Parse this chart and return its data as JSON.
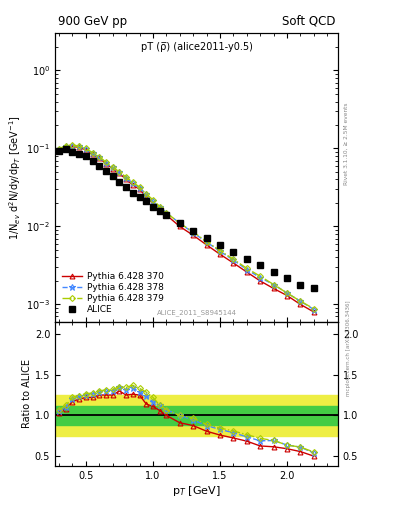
{
  "title_left": "900 GeV pp",
  "title_right": "Soft QCD",
  "right_label": "Rivet 3.1.10, ≥ 2.5M events",
  "plot_title": "pT (ρ̅) (alice2011-y0.5)",
  "watermark": "ALICE_2011_S8945144",
  "source_ref": "mcplots.cern.ch [arXiv:1306.3436]",
  "xlabel": "p$_T$ [GeV]",
  "ylabel_top": "1/N$_{ev}$ d$^2$N/dy/dp$_T$ [GeV$^{-1}$]",
  "ratio_ylabel": "Ratio to ALICE",
  "ylim_log": [
    0.0006,
    3.0
  ],
  "xlim": [
    0.27,
    2.38
  ],
  "ratio_ylim": [
    0.38,
    2.15
  ],
  "ratio_yticks": [
    0.5,
    1.0,
    1.5,
    2.0
  ],
  "alice_pt": [
    0.3,
    0.35,
    0.4,
    0.45,
    0.5,
    0.55,
    0.6,
    0.65,
    0.7,
    0.75,
    0.8,
    0.85,
    0.9,
    0.95,
    1.0,
    1.05,
    1.1,
    1.2,
    1.3,
    1.4,
    1.5,
    1.6,
    1.7,
    1.8,
    1.9,
    2.0,
    2.1,
    2.2
  ],
  "alice_y": [
    0.093,
    0.097,
    0.091,
    0.086,
    0.079,
    0.069,
    0.06,
    0.051,
    0.044,
    0.037,
    0.032,
    0.027,
    0.024,
    0.021,
    0.018,
    0.016,
    0.014,
    0.011,
    0.0088,
    0.0072,
    0.0058,
    0.0047,
    0.0038,
    0.0032,
    0.0026,
    0.0022,
    0.0018,
    0.0016
  ],
  "py370_pt": [
    0.3,
    0.35,
    0.4,
    0.45,
    0.5,
    0.55,
    0.6,
    0.65,
    0.7,
    0.75,
    0.8,
    0.85,
    0.9,
    0.95,
    1.0,
    1.05,
    1.1,
    1.2,
    1.3,
    1.4,
    1.5,
    1.6,
    1.7,
    1.8,
    1.9,
    2.0,
    2.1,
    2.2
  ],
  "py370_y": [
    0.096,
    0.105,
    0.106,
    0.103,
    0.096,
    0.084,
    0.075,
    0.064,
    0.055,
    0.048,
    0.04,
    0.034,
    0.03,
    0.024,
    0.02,
    0.017,
    0.014,
    0.01,
    0.0077,
    0.0058,
    0.0044,
    0.0034,
    0.0026,
    0.002,
    0.0016,
    0.0013,
    0.001,
    0.0008
  ],
  "py378_pt": [
    0.3,
    0.35,
    0.4,
    0.45,
    0.5,
    0.55,
    0.6,
    0.65,
    0.7,
    0.75,
    0.8,
    0.85,
    0.9,
    0.95,
    1.0,
    1.05,
    1.1,
    1.2,
    1.3,
    1.4,
    1.5,
    1.6,
    1.7,
    1.8,
    1.9,
    2.0,
    2.1,
    2.2
  ],
  "py378_y": [
    0.098,
    0.107,
    0.109,
    0.106,
    0.099,
    0.087,
    0.077,
    0.066,
    0.057,
    0.05,
    0.042,
    0.036,
    0.031,
    0.026,
    0.021,
    0.018,
    0.015,
    0.011,
    0.0083,
    0.0063,
    0.0048,
    0.0037,
    0.0028,
    0.0022,
    0.0018,
    0.0014,
    0.0011,
    0.00086
  ],
  "py379_pt": [
    0.3,
    0.35,
    0.4,
    0.45,
    0.5,
    0.55,
    0.6,
    0.65,
    0.7,
    0.75,
    0.8,
    0.85,
    0.9,
    0.95,
    1.0,
    1.05,
    1.1,
    1.2,
    1.3,
    1.4,
    1.5,
    1.6,
    1.7,
    1.8,
    1.9,
    2.0,
    2.1,
    2.2
  ],
  "py379_y": [
    0.099,
    0.109,
    0.111,
    0.107,
    0.1,
    0.088,
    0.078,
    0.067,
    0.058,
    0.05,
    0.043,
    0.037,
    0.032,
    0.026,
    0.022,
    0.018,
    0.015,
    0.011,
    0.0085,
    0.0064,
    0.0049,
    0.0038,
    0.0029,
    0.0023,
    0.0018,
    0.0014,
    0.0011,
    0.00088
  ],
  "ratio_370": [
    1.03,
    1.08,
    1.17,
    1.2,
    1.22,
    1.22,
    1.25,
    1.25,
    1.25,
    1.3,
    1.25,
    1.26,
    1.25,
    1.14,
    1.11,
    1.06,
    1.0,
    0.91,
    0.875,
    0.806,
    0.759,
    0.723,
    0.684,
    0.625,
    0.615,
    0.591,
    0.556,
    0.5
  ],
  "ratio_378": [
    1.054,
    1.103,
    1.198,
    1.233,
    1.253,
    1.261,
    1.283,
    1.294,
    1.295,
    1.351,
    1.313,
    1.333,
    1.292,
    1.238,
    1.167,
    1.125,
    1.071,
    1.0,
    0.943,
    0.875,
    0.828,
    0.787,
    0.737,
    0.688,
    0.692,
    0.636,
    0.611,
    0.538
  ],
  "ratio_379": [
    1.065,
    1.124,
    1.22,
    1.244,
    1.266,
    1.275,
    1.3,
    1.314,
    1.318,
    1.351,
    1.344,
    1.37,
    1.333,
    1.286,
    1.222,
    1.125,
    1.071,
    1.0,
    0.966,
    0.889,
    0.845,
    0.809,
    0.763,
    0.719,
    0.692,
    0.636,
    0.611,
    0.55
  ],
  "band_yellow_lo": 0.75,
  "band_yellow_hi": 1.25,
  "band_green_lo": 0.88,
  "band_green_hi": 1.12,
  "color_370": "#cc0000",
  "color_378": "#4488ff",
  "color_379": "#aacc00",
  "color_alice": "black",
  "band_green_color": "#44cc44",
  "band_yellow_color": "#eeee44",
  "figsize": [
    3.93,
    5.12
  ],
  "dpi": 100
}
